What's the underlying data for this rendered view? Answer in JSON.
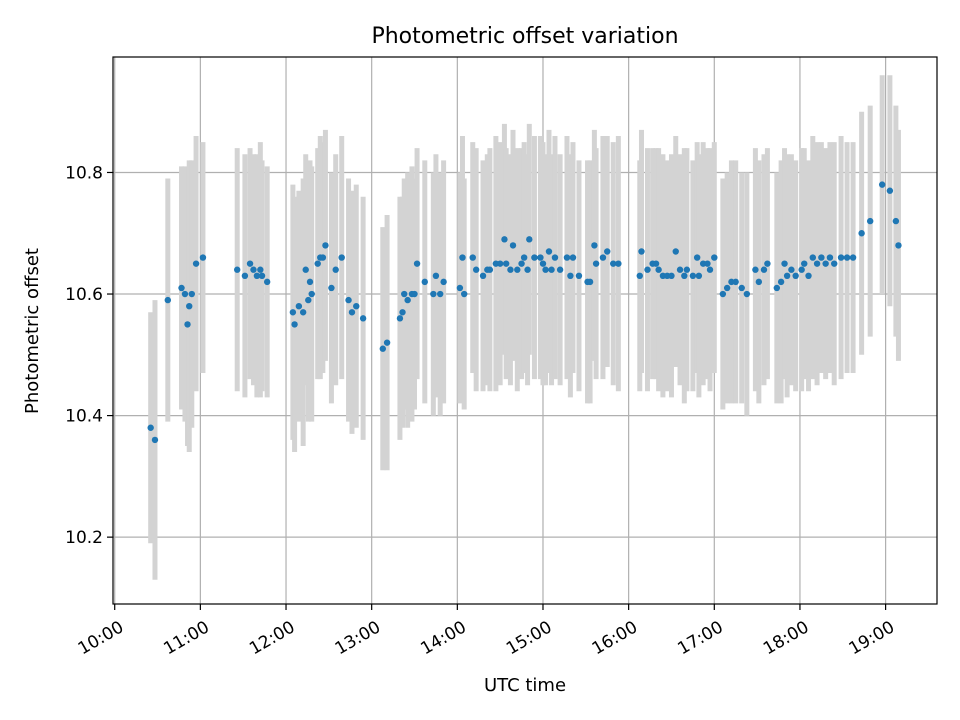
{
  "chart_data": {
    "type": "scatter",
    "title": "Photometric offset variation",
    "xlabel": "UTC time",
    "ylabel": "Photometric offset",
    "x_unit": "hours UTC",
    "xlim": [
      9.98,
      19.6
    ],
    "ylim": [
      10.09,
      10.99
    ],
    "xticks": [
      {
        "value": 10,
        "label": "10:00"
      },
      {
        "value": 11,
        "label": "11:00"
      },
      {
        "value": 12,
        "label": "12:00"
      },
      {
        "value": 13,
        "label": "13:00"
      },
      {
        "value": 14,
        "label": "14:00"
      },
      {
        "value": 15,
        "label": "15:00"
      },
      {
        "value": 16,
        "label": "16:00"
      },
      {
        "value": 17,
        "label": "17:00"
      },
      {
        "value": 18,
        "label": "18:00"
      },
      {
        "value": 19,
        "label": "19:00"
      }
    ],
    "yticks": [
      {
        "value": 10.2,
        "label": "10.2"
      },
      {
        "value": 10.4,
        "label": "10.4"
      },
      {
        "value": 10.6,
        "label": "10.6"
      },
      {
        "value": 10.8,
        "label": "10.8"
      }
    ],
    "grid": true,
    "colors": {
      "marker": "#1f77b4",
      "errorbar": "#d3d3d3",
      "grid": "#b0b0b0"
    },
    "series": [
      {
        "points": [
          [
            10.42,
            10.38,
            0.19
          ],
          [
            10.47,
            10.36,
            0.23
          ],
          [
            10.62,
            10.59,
            0.2
          ],
          [
            10.78,
            10.61,
            0.2
          ],
          [
            10.82,
            10.6,
            0.21
          ],
          [
            10.85,
            10.55,
            0.2
          ],
          [
            10.87,
            10.58,
            0.24
          ],
          [
            10.9,
            10.6,
            0.22
          ],
          [
            10.95,
            10.65,
            0.21
          ],
          [
            11.03,
            10.66,
            0.19
          ],
          [
            11.43,
            10.64,
            0.2
          ],
          [
            11.52,
            10.63,
            0.2
          ],
          [
            11.58,
            10.65,
            0.19
          ],
          [
            11.62,
            10.64,
            0.19
          ],
          [
            11.66,
            10.63,
            0.2
          ],
          [
            11.7,
            10.64,
            0.21
          ],
          [
            11.72,
            10.63,
            0.19
          ],
          [
            11.78,
            10.62,
            0.19
          ],
          [
            12.08,
            10.57,
            0.21
          ],
          [
            12.1,
            10.55,
            0.21
          ],
          [
            12.15,
            10.58,
            0.19
          ],
          [
            12.2,
            10.57,
            0.22
          ],
          [
            12.23,
            10.64,
            0.19
          ],
          [
            12.26,
            10.59,
            0.2
          ],
          [
            12.28,
            10.62,
            0.2
          ],
          [
            12.3,
            10.6,
            0.21
          ],
          [
            12.37,
            10.65,
            0.19
          ],
          [
            12.4,
            10.66,
            0.2
          ],
          [
            12.43,
            10.66,
            0.19
          ],
          [
            12.46,
            10.68,
            0.19
          ],
          [
            12.53,
            10.61,
            0.19
          ],
          [
            12.58,
            10.64,
            0.19
          ],
          [
            12.65,
            10.66,
            0.2
          ],
          [
            12.73,
            10.59,
            0.2
          ],
          [
            12.77,
            10.57,
            0.2
          ],
          [
            12.82,
            10.58,
            0.2
          ],
          [
            12.9,
            10.56,
            0.2
          ],
          [
            13.13,
            10.51,
            0.2
          ],
          [
            13.18,
            10.52,
            0.21
          ],
          [
            13.33,
            10.56,
            0.2
          ],
          [
            13.36,
            10.57,
            0.19
          ],
          [
            13.38,
            10.6,
            0.19
          ],
          [
            13.42,
            10.59,
            0.21
          ],
          [
            13.47,
            10.6,
            0.21
          ],
          [
            13.5,
            10.6,
            0.19
          ],
          [
            13.53,
            10.65,
            0.19
          ],
          [
            13.62,
            10.62,
            0.2
          ],
          [
            13.72,
            10.6,
            0.2
          ],
          [
            13.75,
            10.63,
            0.2
          ],
          [
            13.8,
            10.6,
            0.2
          ],
          [
            13.84,
            10.62,
            0.2
          ],
          [
            14.03,
            10.61,
            0.19
          ],
          [
            14.06,
            10.66,
            0.2
          ],
          [
            14.08,
            10.6,
            0.19
          ],
          [
            14.18,
            10.66,
            0.19
          ],
          [
            14.22,
            10.64,
            0.2
          ],
          [
            14.3,
            10.63,
            0.19
          ],
          [
            14.35,
            10.64,
            0.19
          ],
          [
            14.38,
            10.64,
            0.2
          ],
          [
            14.45,
            10.65,
            0.21
          ],
          [
            14.5,
            10.65,
            0.2
          ],
          [
            14.55,
            10.69,
            0.19
          ],
          [
            14.57,
            10.65,
            0.19
          ],
          [
            14.62,
            10.64,
            0.19
          ],
          [
            14.65,
            10.68,
            0.19
          ],
          [
            14.7,
            10.64,
            0.2
          ],
          [
            14.75,
            10.65,
            0.19
          ],
          [
            14.78,
            10.66,
            0.19
          ],
          [
            14.82,
            10.64,
            0.19
          ],
          [
            14.84,
            10.69,
            0.19
          ],
          [
            14.9,
            10.66,
            0.2
          ],
          [
            14.97,
            10.66,
            0.2
          ],
          [
            15.0,
            10.65,
            0.2
          ],
          [
            15.03,
            10.64,
            0.19
          ],
          [
            15.07,
            10.67,
            0.2
          ],
          [
            15.1,
            10.64,
            0.19
          ],
          [
            15.14,
            10.66,
            0.2
          ],
          [
            15.2,
            10.64,
            0.19
          ],
          [
            15.28,
            10.66,
            0.2
          ],
          [
            15.32,
            10.63,
            0.2
          ],
          [
            15.35,
            10.66,
            0.19
          ],
          [
            15.42,
            10.63,
            0.19
          ],
          [
            15.52,
            10.62,
            0.2
          ],
          [
            15.55,
            10.62,
            0.2
          ],
          [
            15.6,
            10.68,
            0.19
          ],
          [
            15.62,
            10.65,
            0.19
          ],
          [
            15.7,
            10.66,
            0.2
          ],
          [
            15.75,
            10.67,
            0.19
          ],
          [
            15.82,
            10.65,
            0.2
          ],
          [
            15.88,
            10.65,
            0.21
          ],
          [
            16.13,
            10.63,
            0.19
          ],
          [
            16.15,
            10.67,
            0.2
          ],
          [
            16.22,
            10.64,
            0.2
          ],
          [
            16.28,
            10.65,
            0.19
          ],
          [
            16.32,
            10.65,
            0.19
          ],
          [
            16.35,
            10.64,
            0.2
          ],
          [
            16.4,
            10.63,
            0.2
          ],
          [
            16.45,
            10.63,
            0.19
          ],
          [
            16.5,
            10.63,
            0.2
          ],
          [
            16.55,
            10.67,
            0.19
          ],
          [
            16.6,
            10.64,
            0.19
          ],
          [
            16.65,
            10.63,
            0.21
          ],
          [
            16.68,
            10.64,
            0.2
          ],
          [
            16.75,
            10.63,
            0.19
          ],
          [
            16.8,
            10.66,
            0.19
          ],
          [
            16.82,
            10.63,
            0.2
          ],
          [
            16.87,
            10.65,
            0.2
          ],
          [
            16.92,
            10.65,
            0.19
          ],
          [
            16.95,
            10.64,
            0.2
          ],
          [
            17.0,
            10.66,
            0.19
          ],
          [
            17.1,
            10.6,
            0.19
          ],
          [
            17.15,
            10.61,
            0.19
          ],
          [
            17.2,
            10.62,
            0.2
          ],
          [
            17.25,
            10.62,
            0.2
          ],
          [
            17.32,
            10.61,
            0.19
          ],
          [
            17.38,
            10.6,
            0.2
          ],
          [
            17.48,
            10.64,
            0.2
          ],
          [
            17.52,
            10.62,
            0.2
          ],
          [
            17.58,
            10.64,
            0.19
          ],
          [
            17.62,
            10.65,
            0.19
          ],
          [
            17.73,
            10.61,
            0.19
          ],
          [
            17.78,
            10.62,
            0.2
          ],
          [
            17.82,
            10.65,
            0.19
          ],
          [
            17.85,
            10.63,
            0.2
          ],
          [
            17.9,
            10.64,
            0.19
          ],
          [
            17.95,
            10.63,
            0.19
          ],
          [
            18.02,
            10.64,
            0.2
          ],
          [
            18.05,
            10.65,
            0.19
          ],
          [
            18.1,
            10.63,
            0.19
          ],
          [
            18.15,
            10.66,
            0.2
          ],
          [
            18.2,
            10.65,
            0.2
          ],
          [
            18.25,
            10.66,
            0.19
          ],
          [
            18.3,
            10.65,
            0.19
          ],
          [
            18.35,
            10.66,
            0.19
          ],
          [
            18.4,
            10.65,
            0.2
          ],
          [
            18.48,
            10.66,
            0.2
          ],
          [
            18.55,
            10.66,
            0.19
          ],
          [
            18.62,
            10.66,
            0.19
          ],
          [
            18.72,
            10.7,
            0.2
          ],
          [
            18.82,
            10.72,
            0.19
          ],
          [
            18.96,
            10.78,
            0.18
          ],
          [
            19.05,
            10.77,
            0.19
          ],
          [
            19.12,
            10.72,
            0.19
          ],
          [
            19.15,
            10.68,
            0.19
          ]
        ]
      }
    ]
  }
}
